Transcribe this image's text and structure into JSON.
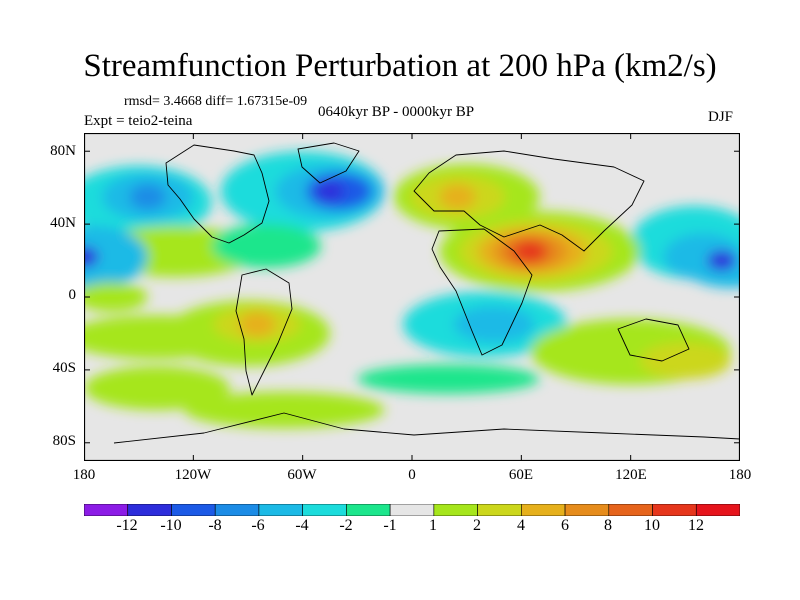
{
  "title": "Streamfunction Perturbation at 200 hPa (km2/s)",
  "stats": "rmsd= 3.4668 diff= 1.67315e-09",
  "expt": "Expt = teio2-teina",
  "period": "0640kyr BP - 0000kyr BP",
  "season": "DJF",
  "axes": {
    "y_ticks": [
      "80N",
      "40N",
      "0",
      "40S",
      "80S"
    ],
    "x_ticks": [
      "180",
      "120W",
      "60W",
      "0",
      "60E",
      "120E",
      "180"
    ]
  },
  "colorbar": {
    "colors": [
      "#8c1ce6",
      "#2d2ddb",
      "#1c5ae6",
      "#1c8ce6",
      "#1cbae6",
      "#1cdcdc",
      "#1ce68c",
      "#e6e6e6",
      "#a6e61c",
      "#ccd71c",
      "#e6b01c",
      "#e68c1c",
      "#e6641c",
      "#e6361c",
      "#e6141c"
    ],
    "labels": [
      "-12",
      "-10",
      "-8",
      "-6",
      "-4",
      "-2",
      "-1",
      "1",
      "2",
      "4",
      "6",
      "8",
      "10",
      "12"
    ]
  },
  "chart_data": {
    "type": "heatmap",
    "title": "Streamfunction Perturbation at 200 hPa (km2/s)",
    "variable": "streamfunction perturbation",
    "units": "km2/s",
    "level": "200 hPa",
    "season": "DJF",
    "x_range": [
      -180,
      180
    ],
    "y_range": [
      -90,
      90
    ],
    "contour_levels": [
      -12,
      -10,
      -8,
      -6,
      -4,
      -2,
      -1,
      1,
      2,
      4,
      6,
      8,
      10,
      12
    ],
    "features": [
      {
        "name": "anticyclone south Asia",
        "lon": 65,
        "lat": 25,
        "value": 12
      },
      {
        "name": "low Greenland/Labrador",
        "lon": -45,
        "lat": 58,
        "value": -10
      },
      {
        "name": "low central Pacific",
        "lon": -180,
        "lat": 22,
        "value": -10
      },
      {
        "name": "low west Pacific",
        "lon": 170,
        "lat": 20,
        "value": -10
      },
      {
        "name": "low North Pacific/Alaska",
        "lon": -145,
        "lat": 55,
        "value": -6
      },
      {
        "name": "high Europe",
        "lon": 25,
        "lat": 55,
        "value": 6
      },
      {
        "name": "high South America",
        "lon": -85,
        "lat": -15,
        "value": 6
      },
      {
        "name": "low Indian Ocean",
        "lon": 45,
        "lat": -15,
        "value": -4
      }
    ]
  }
}
